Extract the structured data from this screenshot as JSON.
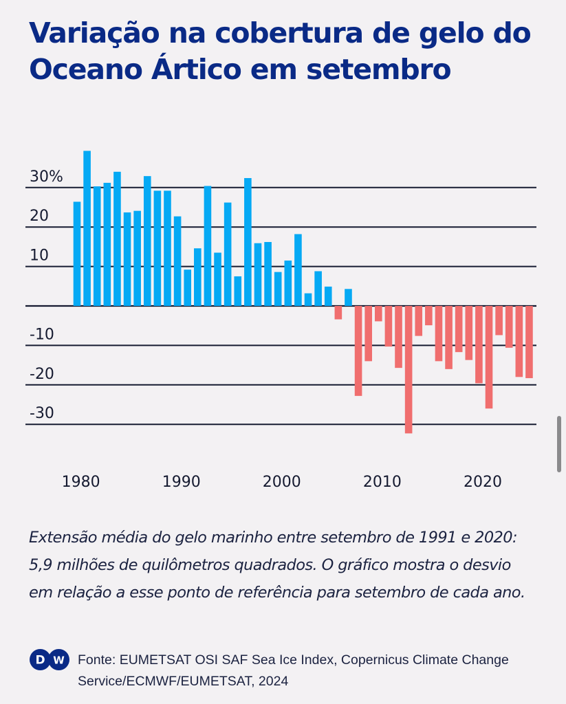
{
  "title": "Variação na cobertura de gelo do Oceano Ártico em setembro",
  "caption": "Extensão média do gelo marinho entre setembro de 1991 e 2020: 5,9 milhões de quilômetros quadrados. O gráfico mostra o desvio em relação a esse ponto de referência para setembro de cada ano.",
  "footer": {
    "logo_text": "DW",
    "logo_letters": [
      "D",
      "W"
    ],
    "source": "Fonte: EUMETSAT OSI SAF Sea Ice Index, Copernicus Climate Change Service/ECMWF/EUMETSAT, 2024"
  },
  "colors": {
    "title": "#0a2a86",
    "positive": "#05a9f4",
    "negative": "#f06e6e",
    "gridline": "#151a30",
    "logo": "#0a2a86"
  },
  "chart_data": {
    "type": "bar",
    "title": "Variação na cobertura de gelo do Oceano Ártico em setembro",
    "xlabel": "",
    "ylabel": "",
    "unit": "%",
    "ylim": [
      -35,
      40
    ],
    "yticks": [
      30,
      20,
      10,
      0,
      -10,
      -20,
      -30
    ],
    "ytick_labels": [
      "30%",
      "20",
      "10",
      "",
      "-10",
      "-20",
      "-30"
    ],
    "xtick_labels": [
      "1980",
      "1990",
      "2000",
      "2010",
      "2020"
    ],
    "grid": true,
    "legend": "none",
    "categories": [
      1979,
      1980,
      1981,
      1982,
      1983,
      1984,
      1985,
      1986,
      1987,
      1988,
      1989,
      1990,
      1991,
      1992,
      1993,
      1994,
      1995,
      1996,
      1997,
      1998,
      1999,
      2000,
      2001,
      2002,
      2003,
      2004,
      2005,
      2006,
      2007,
      2008,
      2009,
      2010,
      2011,
      2012,
      2013,
      2014,
      2015,
      2016,
      2017,
      2018,
      2019,
      2020,
      2021,
      2022,
      2023,
      2024
    ],
    "values": [
      26.4,
      39.3,
      30.3,
      31.2,
      34.0,
      23.7,
      24.1,
      32.9,
      29.2,
      29.2,
      22.7,
      9.2,
      14.6,
      30.4,
      13.5,
      26.2,
      7.5,
      32.4,
      15.9,
      16.2,
      8.6,
      11.5,
      18.2,
      3.2,
      8.8,
      4.9,
      -3.4,
      4.3,
      -22.8,
      -14.0,
      -3.9,
      -10.3,
      -15.7,
      -32.3,
      -7.6,
      -4.9,
      -14.0,
      -16.0,
      -11.7,
      -13.7,
      -19.6,
      -26.0,
      -7.4,
      -10.6,
      -18.0,
      -18.3
    ]
  }
}
